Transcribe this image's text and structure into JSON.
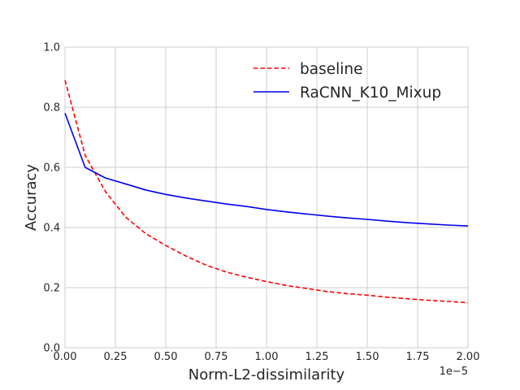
{
  "chart_data": {
    "type": "line",
    "title": "",
    "xlabel": "Norm-L2-dissimilarity",
    "ylabel": "Accuracy",
    "x_offset_label": "1e−5",
    "xlim": [
      0,
      2.0
    ],
    "ylim": [
      0,
      1.0
    ],
    "xticks": [
      0,
      0.25,
      0.5,
      0.75,
      1.0,
      1.25,
      1.5,
      1.75,
      2.0
    ],
    "xtick_labels": [
      "0.00",
      "0.25",
      "0.50",
      "0.75",
      "1.00",
      "1.25",
      "1.50",
      "1.75",
      "2.00"
    ],
    "yticks": [
      0,
      0.2,
      0.4,
      0.6,
      0.8,
      1.0
    ],
    "ytick_labels": [
      "0.0",
      "0.2",
      "0.4",
      "0.6",
      "0.8",
      "1.0"
    ],
    "grid": true,
    "legend_position": "top-right",
    "series": [
      {
        "name": "baseline",
        "color": "#ff0000",
        "linestyle": "dashed",
        "x": [
          0,
          0.1,
          0.2,
          0.3,
          0.4,
          0.5,
          0.6,
          0.7,
          0.8,
          0.9,
          1.0,
          1.1,
          1.2,
          1.3,
          1.4,
          1.5,
          1.6,
          1.7,
          1.8,
          1.9,
          2.0
        ],
        "values": [
          0.89,
          0.64,
          0.52,
          0.435,
          0.38,
          0.34,
          0.305,
          0.275,
          0.252,
          0.235,
          0.22,
          0.207,
          0.197,
          0.187,
          0.18,
          0.175,
          0.168,
          0.163,
          0.158,
          0.154,
          0.15
        ]
      },
      {
        "name": "RaCNN_K10_Mixup",
        "color": "#0000ee",
        "linestyle": "solid",
        "x": [
          0,
          0.1,
          0.2,
          0.3,
          0.4,
          0.5,
          0.6,
          0.7,
          0.8,
          0.9,
          1.0,
          1.1,
          1.2,
          1.3,
          1.4,
          1.5,
          1.6,
          1.7,
          1.8,
          1.9,
          2.0
        ],
        "values": [
          0.78,
          0.6,
          0.565,
          0.545,
          0.525,
          0.51,
          0.498,
          0.488,
          0.478,
          0.47,
          0.46,
          0.452,
          0.445,
          0.438,
          0.432,
          0.427,
          0.421,
          0.416,
          0.412,
          0.408,
          0.405
        ]
      }
    ]
  }
}
